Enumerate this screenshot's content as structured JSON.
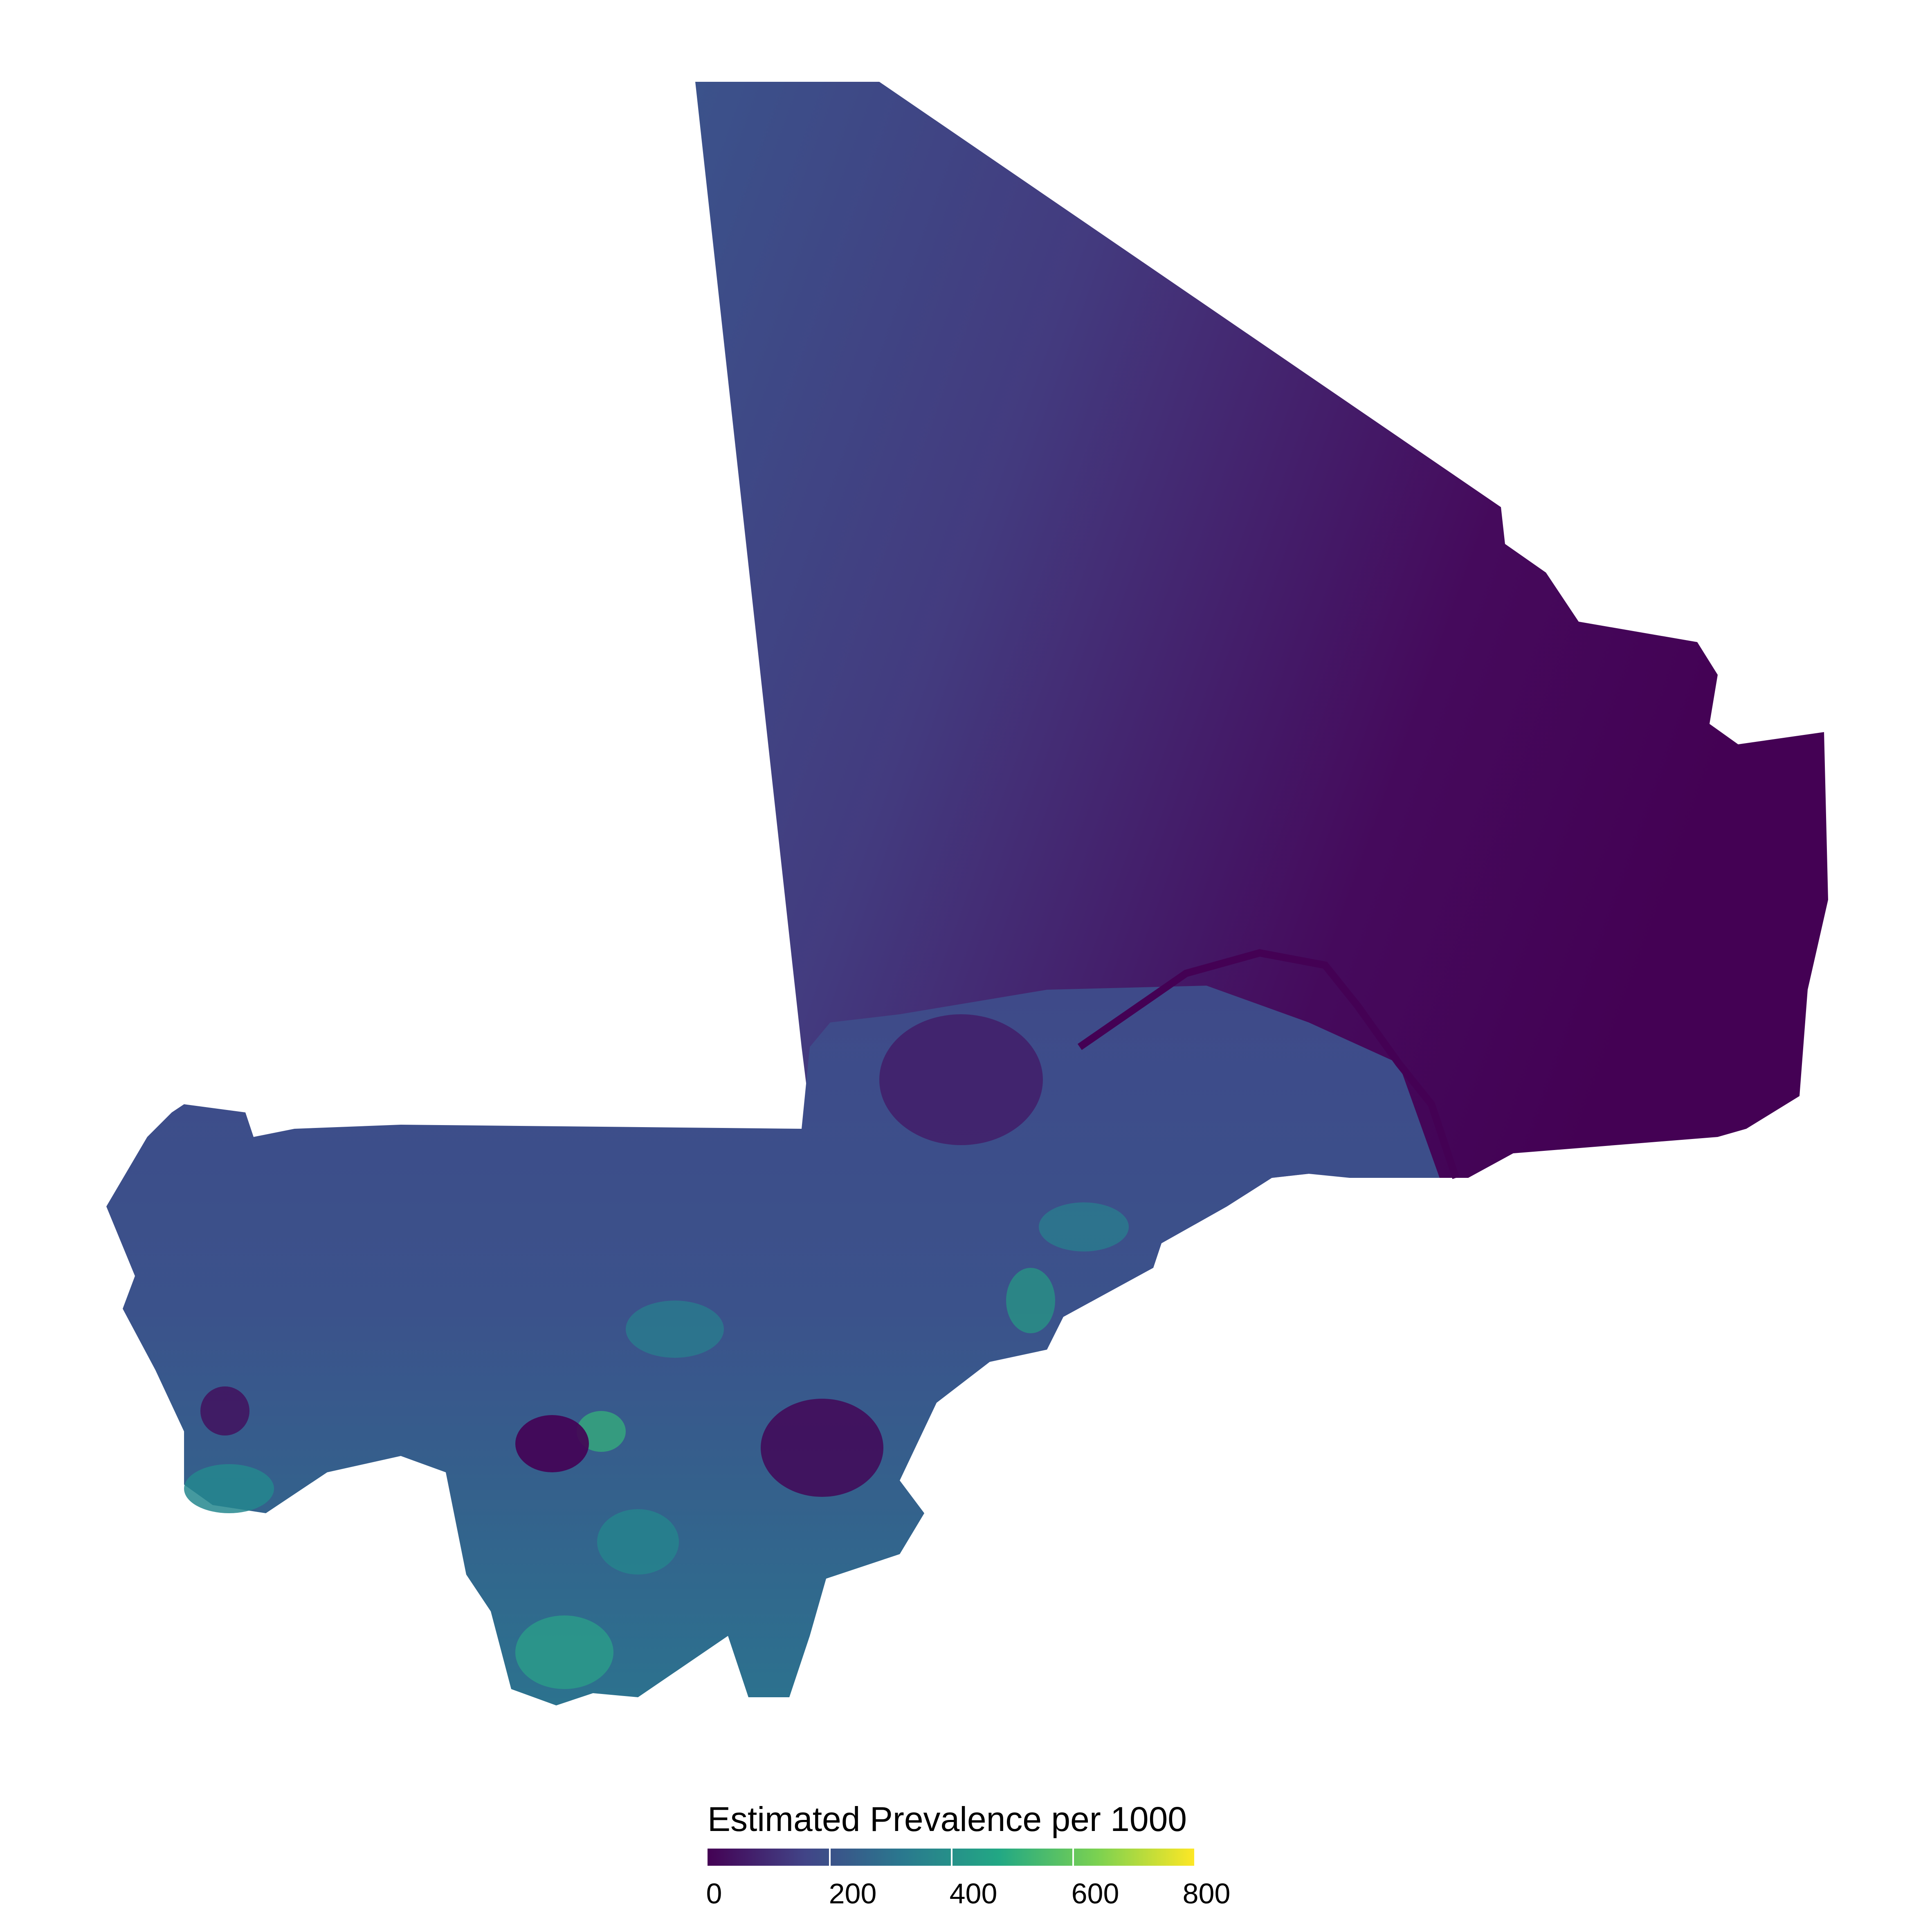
{
  "legend": {
    "title": "Estimated Prevalence per 1000",
    "ticks": [
      {
        "value": 0,
        "label": "0"
      },
      {
        "value": 200,
        "label": "200"
      },
      {
        "value": 400,
        "label": "400"
      },
      {
        "value": 600,
        "label": "600"
      },
      {
        "value": 800,
        "label": "800"
      }
    ],
    "range": [
      0,
      800
    ],
    "colormap": "viridis",
    "colors": [
      "#440154",
      "#414487",
      "#2a788e",
      "#22a884",
      "#7ad151",
      "#fde725"
    ]
  },
  "map": {
    "region_colors": {
      "north_east": "#450a5c",
      "north_west": "#3b528b",
      "central": "#433b7f",
      "south": "#3f4a89",
      "hotspot_teal": "#24878e",
      "hotspot_green": "#35b779",
      "low_dark": "#440154"
    }
  }
}
